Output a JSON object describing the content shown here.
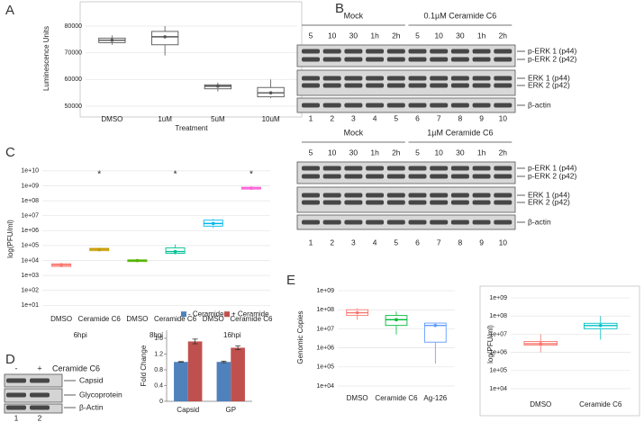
{
  "panel_labels": [
    "A",
    "B",
    "C",
    "D",
    "E"
  ],
  "chart_data": [
    {
      "type": "box",
      "y_label": "Luminescence Units",
      "x_label": "Treatment",
      "categories": [
        "DMSO",
        "1uM",
        "5uM",
        "10uM"
      ],
      "boxes": [
        {
          "min": 73000,
          "q1": 73800,
          "median": 74700,
          "q3": 75500,
          "max": 76500
        },
        {
          "min": 69000,
          "q1": 73000,
          "median": 76000,
          "q3": 78000,
          "max": 80000
        },
        {
          "min": 55500,
          "q1": 56500,
          "median": 57500,
          "q3": 58000,
          "max": 58800
        },
        {
          "min": 53000,
          "q1": 53500,
          "median": 55000,
          "q3": 57000,
          "max": 60000
        }
      ],
      "colors": [
        "#555555",
        "#555555",
        "#555555",
        "#555555"
      ],
      "ylim": [
        47640,
        88090
      ],
      "yticks": [
        50000,
        60000,
        70000,
        80000
      ],
      "grid": true
    },
    {
      "type": "box",
      "y_label": "log(PFU/ml)",
      "categories": [
        "DMSO",
        "Ceramide C6",
        "DMSO",
        "Ceramide C6",
        "DMSO",
        "Ceramide C6"
      ],
      "groups": [
        "6hpi",
        "8hpi",
        "16hpi"
      ],
      "annotations": [
        null,
        "*",
        null,
        "*",
        null,
        "*"
      ],
      "boxes": [
        {
          "min": 3500,
          "q1": 4000,
          "median": 5000,
          "q3": 6000,
          "max": 7000
        },
        {
          "min": 40000,
          "q1": 45000,
          "median": 55000,
          "q3": 65000,
          "max": 70000
        },
        {
          "min": 8000,
          "q1": 8500,
          "median": 10000,
          "q3": 11000,
          "max": 12000
        },
        {
          "min": 25000,
          "q1": 30000,
          "median": 40000,
          "q3": 70000,
          "max": 120000
        },
        {
          "min": 1500000,
          "q1": 2000000,
          "median": 3000000,
          "q3": 5000000,
          "max": 6000000
        },
        {
          "min": 550000000,
          "q1": 600000000,
          "median": 700000000,
          "q3": 800000000,
          "max": 900000000
        }
      ],
      "colors": [
        "#f8766d",
        "#c49a00",
        "#53b400",
        "#00c094",
        "#00b6eb",
        "#fb61d7"
      ],
      "log_scale": true,
      "ylim": [
        3,
        26000000000
      ],
      "yticks": [
        {
          "value": 10,
          "label": "1e+01"
        },
        {
          "value": 100,
          "label": "1e+02"
        },
        {
          "value": 1000,
          "label": "1e+03"
        },
        {
          "value": 10000,
          "label": "1e+04"
        },
        {
          "value": 100000,
          "label": "1e+05"
        },
        {
          "value": 1000000,
          "label": "1e+06"
        },
        {
          "value": 10000000,
          "label": "1e+07"
        },
        {
          "value": 100000000,
          "label": "1e+08"
        },
        {
          "value": 1000000000,
          "label": "1e+09"
        },
        {
          "value": 10000000000,
          "label": "1e+10"
        }
      ],
      "grid": true
    },
    {
      "type": "bar",
      "y_label": "Fold Change",
      "categories": [
        "Capsid",
        "GP"
      ],
      "series": [
        {
          "name": "- Ceramide",
          "color": "#4f81bd",
          "values": [
            1.0,
            1.0
          ],
          "errors": [
            0.01,
            0.02
          ]
        },
        {
          "name": "+ Ceramide",
          "color": "#c0504d",
          "values": [
            1.52,
            1.36
          ],
          "errors": [
            0.06,
            0.05
          ]
        }
      ],
      "ylim": [
        0,
        1.8
      ],
      "yticks": [
        0,
        0.4,
        0.8,
        1.2,
        1.6
      ],
      "grid": false,
      "legend": "top"
    },
    {
      "type": "box",
      "y_label": "Genomic Copies",
      "categories": [
        "DMSO",
        "Ceramide C6",
        "Ag-126"
      ],
      "boxes": [
        {
          "min": 30000000,
          "q1": 50000000,
          "median": 70000000,
          "q3": 100000000,
          "max": 120000000
        },
        {
          "min": 5000000,
          "q1": 15000000,
          "median": 30000000,
          "q3": 50000000,
          "max": 80000000
        },
        {
          "min": 150000,
          "q1": 2000000,
          "median": 15000000,
          "q3": 20000000,
          "max": 20000000
        }
      ],
      "colors": [
        "#f8766d",
        "#00ba38",
        "#619cff"
      ],
      "log_scale": true,
      "ylim": [
        5200,
        2400000000
      ],
      "yticks": [
        {
          "value": 10000,
          "label": "1e+04"
        },
        {
          "value": 100000,
          "label": "1e+05"
        },
        {
          "value": 1000000,
          "label": "1e+06"
        },
        {
          "value": 10000000,
          "label": "1e+07"
        },
        {
          "value": 100000000,
          "label": "1e+08"
        },
        {
          "value": 1000000000,
          "label": "1e+09"
        }
      ],
      "grid": true
    },
    {
      "type": "box",
      "y_label": "log(PFU/ml)",
      "categories": [
        "DMSO",
        "Ceramide C6"
      ],
      "boxes": [
        {
          "min": 1000000,
          "q1": 2500000,
          "median": 3000000,
          "q3": 4000000,
          "max": 10000000
        },
        {
          "min": 5000000,
          "q1": 20000000,
          "median": 30000000,
          "q3": 40000000,
          "max": 100000000
        }
      ],
      "colors": [
        "#f8766d",
        "#00bfc4"
      ],
      "log_scale": true,
      "ylim": [
        4000,
        2000000000
      ],
      "yticks": [
        {
          "value": 10000,
          "label": "1e+04"
        },
        {
          "value": 100000,
          "label": "1e+05"
        },
        {
          "value": 1000000,
          "label": "1e+06"
        },
        {
          "value": 10000000,
          "label": "1e+07"
        },
        {
          "value": 100000000,
          "label": "1e+08"
        },
        {
          "value": 1000000000,
          "label": "1e+09"
        }
      ],
      "grid": true
    }
  ],
  "blots": [
    {
      "groups": [
        "Mock",
        "0.1µM Ceramide C6"
      ],
      "times": [
        "5",
        "10",
        "30",
        "1h",
        "2h",
        "5",
        "10",
        "30",
        "1h",
        "2h"
      ],
      "lanes": [
        "1",
        "2",
        "3",
        "4",
        "5",
        "6",
        "7",
        "8",
        "9",
        "10"
      ],
      "bands": [
        "p-ERK 1 (p44)",
        "p-ERK 2 (p42)",
        "ERK 1 (p44)",
        "ERK 2 (p42)",
        "β-actin"
      ]
    },
    {
      "groups": [
        "Mock",
        "1µM Ceramide C6"
      ],
      "times": [
        "5",
        "10",
        "30",
        "1h",
        "2h",
        "5",
        "10",
        "30",
        "1h",
        "2h"
      ],
      "lanes": [
        "1",
        "2",
        "3",
        "4",
        "5",
        "6",
        "7",
        "8",
        "9",
        "10"
      ],
      "bands": [
        "p-ERK 1 (p44)",
        "p-ERK 2 (p42)",
        "ERK 1 (p44)",
        "ERK 2 (p42)",
        "β-actin"
      ]
    }
  ],
  "blot_d": {
    "conditions": [
      "-",
      "+"
    ],
    "treatment": "Ceramide C6",
    "bands": [
      "Capsid",
      "Glycoprotein",
      "β-Actin"
    ],
    "lanes": [
      "1",
      "2"
    ]
  }
}
